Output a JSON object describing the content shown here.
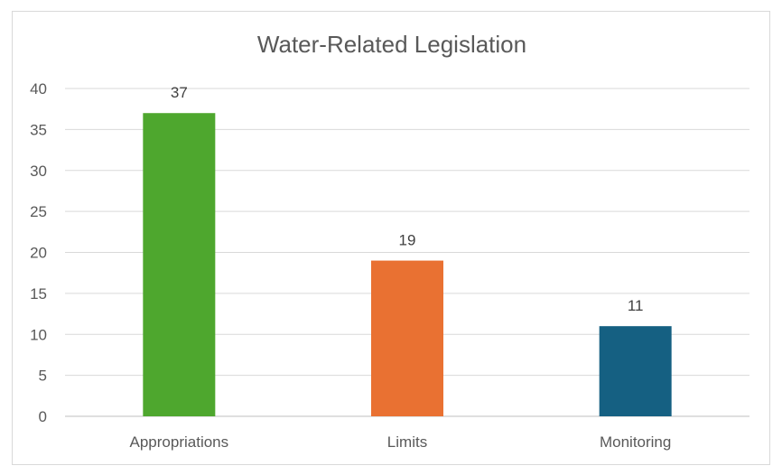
{
  "chart_data": {
    "type": "bar",
    "title": "Water-Related Legislation",
    "categories": [
      "Appropriations",
      "Limits",
      "Monitoring"
    ],
    "values": [
      37,
      19,
      11
    ],
    "colors": [
      "#4EA72E",
      "#E97132",
      "#156082"
    ],
    "ylim": [
      0,
      40
    ],
    "yticks": [
      0,
      5,
      10,
      15,
      20,
      25,
      30,
      35,
      40
    ],
    "grid": true,
    "data_labels": true,
    "xlabel": "",
    "ylabel": ""
  }
}
